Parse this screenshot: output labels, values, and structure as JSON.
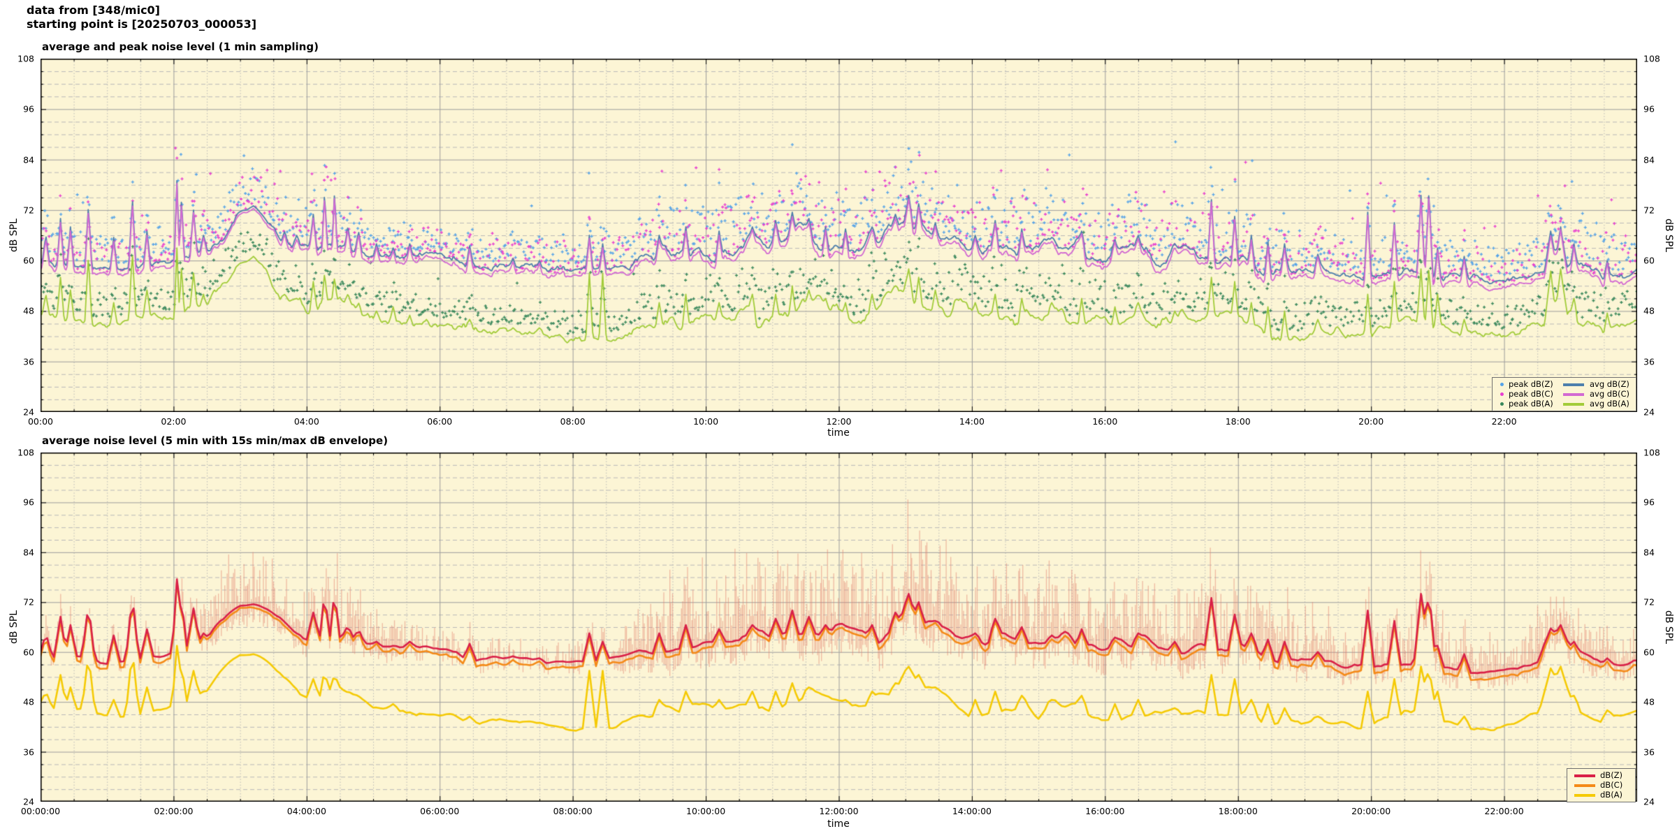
{
  "header": {
    "line1": "data from [348/mic0]",
    "line2": "starting point is [20250703_000053]"
  },
  "colors": {
    "plot_background": "#fcf5d5",
    "page_background": "#ffffff",
    "grid_major": "#9c9c9c",
    "grid_minor": "#b8b8b8",
    "axis_border": "#000000",
    "peak_dBZ": "#55a3e8",
    "peak_dBC": "#e83ed0",
    "peak_dBA": "#37875a",
    "avg_dBZ": "#4d7fac",
    "avg_dBC": "#d269d2",
    "avg_dBA": "#a2cc3a",
    "dBZ": "#d92048",
    "dBC": "#f48a18",
    "dBA": "#f5ca05",
    "envelope": "rgba(228,128,110,0.5)"
  },
  "panels": [
    {
      "title": "average and peak noise level (1 min sampling)",
      "xlabel": "time",
      "ylabel": "dB SPL",
      "x_major_hours": [
        0,
        2,
        4,
        6,
        8,
        10,
        12,
        14,
        16,
        18,
        20,
        22
      ],
      "x_major_labels": [
        "00:00",
        "02:00",
        "04:00",
        "06:00",
        "08:00",
        "10:00",
        "12:00",
        "14:00",
        "16:00",
        "18:00",
        "20:00",
        "22:00"
      ],
      "y_ticks": [
        24,
        36,
        48,
        60,
        72,
        84,
        96,
        108
      ],
      "legend": [
        {
          "label": "peak dB(Z)",
          "color": "#55a3e8",
          "marker": "point"
        },
        {
          "label": "peak dB(C)",
          "color": "#e83ed0",
          "marker": "point"
        },
        {
          "label": "peak dB(A)",
          "color": "#37875a",
          "marker": "point"
        },
        {
          "label": "avg dB(Z)",
          "color": "#4d7fac",
          "marker": "line"
        },
        {
          "label": "avg dB(C)",
          "color": "#d269d2",
          "marker": "line"
        },
        {
          "label": "avg dB(A)",
          "color": "#a2cc3a",
          "marker": "line"
        }
      ]
    },
    {
      "title": "average noise level (5 min with 15s min/max dB envelope)",
      "xlabel": "time",
      "ylabel": "dB SPL",
      "x_major_hours": [
        0,
        2,
        4,
        6,
        8,
        10,
        12,
        14,
        16,
        18,
        20,
        22
      ],
      "x_major_labels": [
        "00:00:00",
        "02:00:00",
        "04:00:00",
        "06:00:00",
        "08:00:00",
        "10:00:00",
        "12:00:00",
        "14:00:00",
        "16:00:00",
        "18:00:00",
        "20:00:00",
        "22:00:00"
      ],
      "y_ticks": [
        24,
        36,
        48,
        60,
        72,
        84,
        96,
        108
      ],
      "legend": [
        {
          "label": "dB(Z)",
          "color": "#d92048",
          "marker": "line"
        },
        {
          "label": "dB(C)",
          "color": "#f48a18",
          "marker": "line"
        },
        {
          "label": "dB(A)",
          "color": "#f5ca05",
          "marker": "line"
        }
      ]
    }
  ],
  "chart_data": [
    {
      "type": "line",
      "title": "average and peak noise level (1 min sampling)",
      "xlabel": "time",
      "ylabel": "dB SPL",
      "xlim_hours": [
        0,
        24
      ],
      "ylim": [
        24,
        108
      ],
      "x_major_tick_hours": 2,
      "x_minor_tick_hours": 0.5,
      "y_major_tick": 12,
      "y_minor_tick": 3,
      "grid": true,
      "legend_position": "bottom-right",
      "values_time_step_hours": 0.5,
      "series": [
        {
          "name": "avg dB(Z)",
          "style": "line",
          "color": "#4d7fac",
          "values": [
            58.5,
            58.3,
            58.0,
            58.6,
            59.6,
            62.5,
            70.5,
            66.0,
            62.5,
            63.5,
            61.2,
            61.0,
            61.0,
            58.4,
            58.6,
            58.0,
            57.6,
            57.8,
            60.0,
            61.5,
            62.0,
            63.0,
            64.0,
            66.0,
            64.5,
            64.0,
            68.5,
            65.5,
            62.5,
            64.5,
            62.5,
            63.5,
            61.5,
            62.5,
            61.5,
            61.0,
            60.5,
            58.0,
            57.5,
            56.8,
            56.5,
            57.5,
            56.5,
            55.8,
            55.5,
            57.5,
            59.5,
            56.5,
            57.5
          ]
        },
        {
          "name": "avg dB(C)",
          "style": "line",
          "color": "#d269d2",
          "values": [
            57.2,
            57.0,
            56.7,
            57.3,
            58.4,
            61.5,
            70.0,
            65.0,
            61.3,
            62.4,
            59.9,
            59.7,
            59.7,
            57.0,
            57.2,
            56.6,
            56.2,
            56.4,
            58.7,
            60.2,
            60.7,
            61.7,
            62.7,
            64.7,
            63.2,
            62.7,
            67.3,
            64.2,
            61.2,
            63.2,
            61.2,
            62.2,
            60.2,
            61.2,
            60.2,
            59.7,
            59.2,
            56.5,
            56.0,
            55.3,
            55.0,
            56.2,
            55.0,
            54.1,
            53.9,
            56.2,
            58.0,
            55.0,
            56.2
          ]
        },
        {
          "name": "avg dB(A)",
          "style": "line",
          "color": "#a2cc3a",
          "values": [
            47.0,
            45.5,
            45.0,
            46.0,
            47.0,
            50.5,
            58.5,
            52.0,
            48.5,
            52.0,
            46.5,
            45.5,
            45.0,
            43.5,
            43.5,
            42.5,
            41.5,
            41.8,
            44.0,
            46.0,
            46.0,
            47.0,
            47.0,
            49.0,
            48.0,
            47.0,
            54.0,
            49.5,
            46.0,
            48.0,
            46.0,
            47.0,
            45.0,
            46.0,
            45.0,
            44.5,
            45.5,
            43.0,
            43.0,
            42.5,
            42.5,
            46.0,
            43.5,
            42.0,
            42.0,
            45.0,
            47.5,
            43.5,
            45.5
          ]
        },
        {
          "name": "peak dB(Z)",
          "style": "scatter",
          "color": "#55a3e8",
          "band": "above avg dB(Z)",
          "typical_offset_db": [
            2,
            14
          ],
          "outlier_max_db": 90
        },
        {
          "name": "peak dB(C)",
          "style": "scatter",
          "color": "#e83ed0",
          "band": "above avg dB(C)",
          "typical_offset_db": [
            2,
            14
          ],
          "outlier_max_db": 90
        },
        {
          "name": "peak dB(A)",
          "style": "scatter",
          "color": "#37875a",
          "band": "above avg dB(A)",
          "typical_offset_db": [
            2,
            11
          ],
          "outlier_max_db": 75
        }
      ],
      "fluctuation_amplitude_db": [
        1.0,
        1.0,
        1.0,
        1.0,
        1.0,
        1.3,
        1.5,
        1.5,
        1.5,
        1.5,
        1.0,
        0.9,
        0.9,
        0.8,
        0.7,
        0.7,
        0.7,
        0.8,
        1.6,
        2.2,
        2.4,
        2.6,
        2.8,
        3.0,
        3.0,
        3.0,
        3.2,
        3.0,
        2.8,
        2.8,
        2.8,
        2.8,
        2.6,
        2.6,
        2.4,
        2.4,
        2.2,
        2.0,
        1.8,
        1.4,
        1.2,
        1.0,
        1.0,
        1.0,
        1.0,
        1.0,
        2.2,
        1.8,
        1.2
      ],
      "spike_events": [
        [
          0.08,
          66,
          52
        ],
        [
          0.3,
          70,
          56
        ],
        [
          0.45,
          68,
          53
        ],
        [
          0.72,
          73,
          61
        ],
        [
          1.1,
          65.5,
          50
        ],
        [
          1.38,
          75,
          62
        ],
        [
          1.6,
          67,
          53
        ],
        [
          2.05,
          79,
          63,
          0.04
        ],
        [
          2.12,
          75,
          59,
          0.04
        ],
        [
          2.3,
          72,
          57
        ],
        [
          2.45,
          66,
          52
        ],
        [
          2.62,
          64,
          52
        ],
        [
          3.2,
          73,
          61,
          0.4
        ],
        [
          3.67,
          67,
          52
        ],
        [
          3.85,
          66,
          51
        ],
        [
          4.1,
          71,
          55
        ],
        [
          4.27,
          76,
          57,
          0.04
        ],
        [
          4.42,
          76.5,
          56,
          0.04
        ],
        [
          4.62,
          68,
          52
        ],
        [
          4.78,
          67,
          50
        ],
        [
          5.05,
          64,
          48
        ],
        [
          5.3,
          63,
          49
        ],
        [
          5.55,
          64,
          47
        ],
        [
          5.8,
          62,
          46
        ],
        [
          6.45,
          63.5,
          46
        ],
        [
          7.1,
          60.5,
          44
        ],
        [
          7.5,
          60,
          44
        ],
        [
          8.25,
          66,
          57
        ],
        [
          8.45,
          64,
          57
        ],
        [
          9.3,
          66,
          50
        ],
        [
          9.7,
          68,
          52
        ],
        [
          10.2,
          67,
          50
        ],
        [
          10.7,
          68,
          52
        ],
        [
          11.05,
          69.5,
          52
        ],
        [
          11.3,
          71.5,
          54
        ],
        [
          11.55,
          70,
          53
        ],
        [
          11.8,
          68,
          51
        ],
        [
          12.1,
          67.5,
          50
        ],
        [
          12.5,
          68,
          52
        ],
        [
          12.85,
          71,
          54
        ],
        [
          13.05,
          75.5,
          58,
          0.07
        ],
        [
          13.2,
          73.5,
          56
        ],
        [
          13.45,
          69,
          53
        ],
        [
          14.05,
          66,
          50
        ],
        [
          14.35,
          69.5,
          52
        ],
        [
          14.75,
          67.5,
          51
        ],
        [
          15.2,
          65.5,
          50
        ],
        [
          15.65,
          67,
          51
        ],
        [
          16.15,
          65,
          49
        ],
        [
          16.5,
          66,
          50
        ],
        [
          17.05,
          64,
          48
        ],
        [
          17.6,
          74.5,
          56
        ],
        [
          17.95,
          70.5,
          55
        ],
        [
          18.2,
          66,
          50
        ],
        [
          18.45,
          64.5,
          49
        ],
        [
          18.7,
          64,
          48
        ],
        [
          19.2,
          61.5,
          46
        ],
        [
          19.95,
          71.5,
          52
        ],
        [
          20.35,
          69,
          55
        ],
        [
          20.75,
          75.5,
          58,
          0.06
        ],
        [
          20.87,
          76.5,
          58.5,
          0.06
        ],
        [
          21.0,
          63,
          52
        ],
        [
          21.4,
          61,
          46
        ],
        [
          22.7,
          67,
          57.5,
          0.1
        ],
        [
          22.85,
          68,
          58,
          0.1
        ],
        [
          23.05,
          64,
          51
        ],
        [
          23.55,
          60,
          47.5
        ]
      ]
    },
    {
      "type": "line",
      "title": "average noise level (5 min with 15s min/max dB envelope)",
      "xlabel": "time",
      "ylabel": "dB SPL",
      "xlim_hours": [
        0,
        24
      ],
      "ylim": [
        24,
        108
      ],
      "x_major_tick_hours": 2,
      "x_minor_tick_hours": 0.5,
      "y_major_tick": 12,
      "y_minor_tick": 3,
      "grid": true,
      "legend_position": "bottom-right",
      "values_time_step_hours": 0.5,
      "series": [
        {
          "name": "dB(Z)",
          "style": "line",
          "color": "#d92048",
          "values": [
            58.5,
            58.3,
            58.0,
            58.6,
            59.6,
            62.5,
            70.5,
            66.0,
            62.5,
            63.5,
            61.2,
            61.0,
            61.0,
            58.4,
            58.6,
            58.0,
            57.6,
            57.8,
            60.0,
            61.5,
            62.0,
            63.0,
            64.0,
            66.0,
            64.5,
            64.0,
            68.5,
            65.5,
            62.5,
            64.5,
            62.5,
            63.5,
            61.5,
            62.5,
            61.5,
            61.0,
            60.5,
            58.0,
            57.5,
            56.8,
            56.5,
            57.5,
            56.5,
            55.8,
            55.5,
            57.5,
            59.5,
            56.5,
            57.5
          ]
        },
        {
          "name": "dB(C)",
          "style": "line",
          "color": "#f48a18",
          "values": [
            57.2,
            57.0,
            56.7,
            57.3,
            58.4,
            61.5,
            70.0,
            65.0,
            61.3,
            62.4,
            59.9,
            59.7,
            59.7,
            57.0,
            57.2,
            56.6,
            56.2,
            56.4,
            58.7,
            60.2,
            60.7,
            61.7,
            62.7,
            64.7,
            63.2,
            62.7,
            67.3,
            64.2,
            61.2,
            63.2,
            61.2,
            62.2,
            60.2,
            61.2,
            60.2,
            59.7,
            59.2,
            56.5,
            56.0,
            55.3,
            55.0,
            56.2,
            55.0,
            54.1,
            53.9,
            56.2,
            58.0,
            55.0,
            56.2
          ]
        },
        {
          "name": "dB(A)",
          "style": "line",
          "color": "#f5ca05",
          "values": [
            47.0,
            45.5,
            45.0,
            46.0,
            47.0,
            50.5,
            58.5,
            52.0,
            48.5,
            52.0,
            46.5,
            45.5,
            45.0,
            43.5,
            43.5,
            42.5,
            41.5,
            41.8,
            44.0,
            46.0,
            46.0,
            47.0,
            47.0,
            49.0,
            48.0,
            47.0,
            54.0,
            49.5,
            46.0,
            48.0,
            46.0,
            47.0,
            45.0,
            46.0,
            45.0,
            44.5,
            45.5,
            43.0,
            43.0,
            42.5,
            42.5,
            46.0,
            43.5,
            42.0,
            42.0,
            45.0,
            47.5,
            43.5,
            45.5
          ]
        }
      ],
      "envelope": {
        "applies_to": "dB(Z)",
        "description": "15s min/max dB envelope drawn as pale vertical strokes",
        "max_above_line_db": [
          5,
          5,
          4,
          4,
          4,
          10,
          14,
          11,
          12,
          12,
          8,
          6,
          5,
          4,
          4,
          4,
          4,
          5,
          10,
          14,
          15,
          16,
          17,
          18,
          18,
          18,
          19,
          18,
          17,
          17,
          16,
          16,
          15,
          15,
          14,
          14,
          13,
          12,
          10,
          8,
          8,
          14,
          10,
          6,
          6,
          10,
          10,
          8,
          7
        ],
        "min_below_line_db": [
          3,
          3,
          3,
          3,
          3,
          4,
          5,
          4,
          4,
          4,
          4,
          3,
          3,
          3,
          3,
          3,
          3,
          3,
          5,
          6,
          6,
          6,
          6,
          7,
          7,
          7,
          7,
          7,
          6,
          6,
          6,
          6,
          6,
          6,
          6,
          6,
          5,
          5,
          5,
          4,
          4,
          4,
          5,
          4,
          4,
          4,
          5,
          4,
          3
        ]
      },
      "fluctuation_amplitude_db": [
        1.0,
        1.0,
        1.0,
        1.0,
        1.0,
        1.3,
        1.5,
        1.5,
        1.5,
        1.5,
        1.0,
        0.9,
        0.9,
        0.8,
        0.7,
        0.7,
        0.7,
        0.8,
        1.6,
        2.2,
        2.4,
        2.6,
        2.8,
        3.0,
        3.0,
        3.0,
        3.2,
        3.0,
        2.8,
        2.8,
        2.8,
        2.8,
        2.6,
        2.6,
        2.4,
        2.4,
        2.2,
        2.0,
        1.8,
        1.4,
        1.2,
        1.0,
        1.0,
        1.0,
        1.0,
        1.0,
        2.2,
        1.8,
        1.2
      ],
      "spike_events": "same events as panel 1, smoothed by 5 min averaging"
    }
  ]
}
